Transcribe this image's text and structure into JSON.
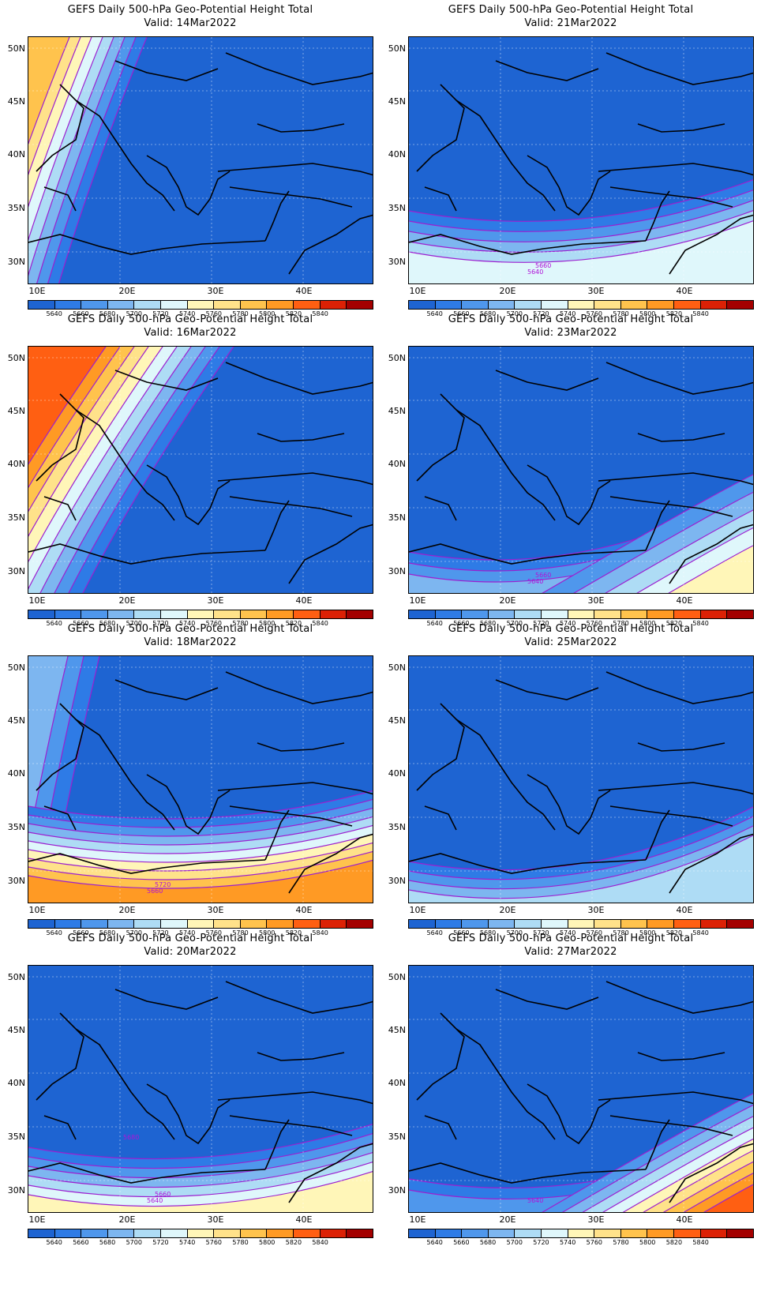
{
  "title_line1": "GEFS Daily 500-hPa Geo-Potential Height Total",
  "lat_labels": [
    "50N",
    "45N",
    "40N",
    "35N",
    "30N"
  ],
  "lon_labels": [
    "10E",
    "20E",
    "30E",
    "40E"
  ],
  "colorbar": {
    "labels": [
      "5640",
      "5660",
      "5680",
      "5700",
      "5720",
      "5740",
      "5760",
      "5780",
      "5800",
      "5820",
      "5840"
    ],
    "colors": [
      "#1e64d2",
      "#2e7be6",
      "#4f97ec",
      "#7db6f0",
      "#aedcf5",
      "#dff7fb",
      "#fff6b8",
      "#ffe28a",
      "#ffc34d",
      "#ff9a24",
      "#ff5f12",
      "#dc2105",
      "#a40000"
    ]
  },
  "panels": [
    {
      "valid": "Valid: 14Mar2022",
      "contour_labels": []
    },
    {
      "valid": "Valid: 21Mar2022",
      "contour_labels": [
        "5640",
        "5660"
      ]
    },
    {
      "valid": "Valid: 16Mar2022",
      "contour_labels": []
    },
    {
      "valid": "Valid: 23Mar2022",
      "contour_labels": [
        "5640",
        "5660"
      ]
    },
    {
      "valid": "Valid: 18Mar2022",
      "contour_labels": [
        "5660",
        "5720"
      ]
    },
    {
      "valid": "Valid: 25Mar2022",
      "contour_labels": []
    },
    {
      "valid": "Valid: 20Mar2022",
      "contour_labels": [
        "5640",
        "5660",
        "5680"
      ]
    },
    {
      "valid": "Valid: 27Mar2022",
      "contour_labels": [
        "5640"
      ]
    }
  ]
}
